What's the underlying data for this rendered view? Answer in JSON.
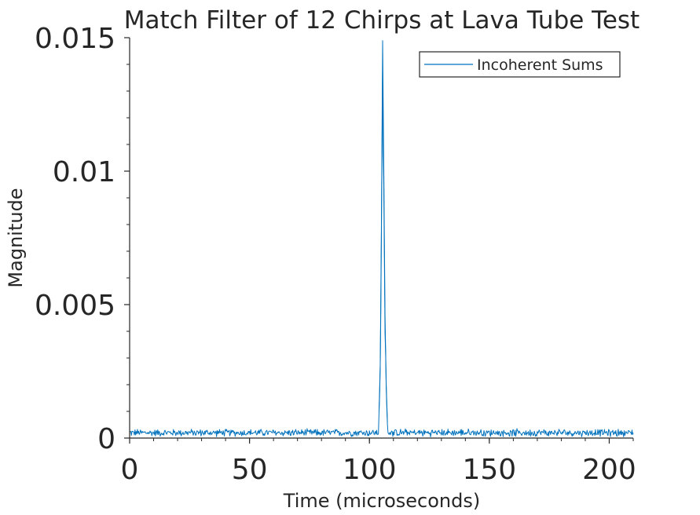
{
  "chart_data": {
    "type": "line",
    "title": "Match Filter of 12 Chirps at Lava Tube Test",
    "xlabel": "Time (microseconds)",
    "ylabel": "Magnitude",
    "xlim": [
      0,
      210
    ],
    "ylim": [
      0,
      0.015
    ],
    "xticks": [
      0,
      50,
      100,
      150,
      200
    ],
    "xtick_labels": [
      "0",
      "50",
      "100",
      "150",
      "200"
    ],
    "yticks": [
      0,
      0.005,
      0.01,
      0.015
    ],
    "ytick_labels": [
      "0",
      "0.005",
      "0.01",
      "0.015"
    ],
    "grid": false,
    "legend": "top-right",
    "series": [
      {
        "name": "Incoherent Sums",
        "color": "#0072BD",
        "baseline": 0.0002,
        "noise_amplitude": 0.0001,
        "sample_step": 0.25,
        "peaks": [
          {
            "x": 104.0,
            "y": 0.001
          },
          {
            "x": 104.5,
            "y": 0.0027
          },
          {
            "x": 105.0,
            "y": 0.008
          },
          {
            "x": 105.5,
            "y": 0.0149
          },
          {
            "x": 106.0,
            "y": 0.01
          },
          {
            "x": 106.5,
            "y": 0.0046
          },
          {
            "x": 107.0,
            "y": 0.002
          },
          {
            "x": 107.5,
            "y": 0.0006
          }
        ]
      }
    ]
  }
}
